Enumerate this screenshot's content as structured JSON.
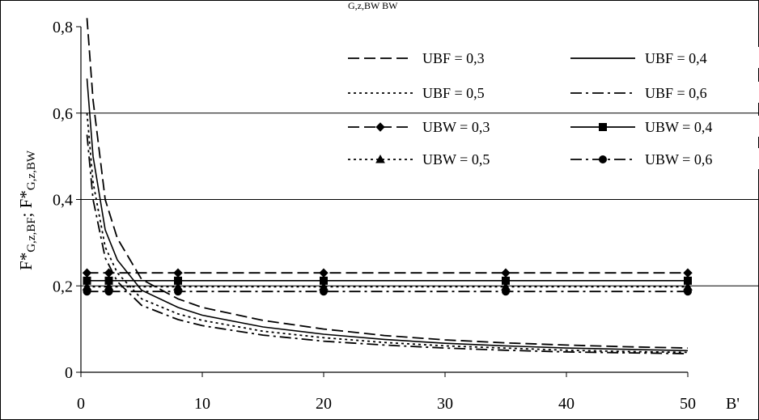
{
  "chart_data": {
    "type": "line",
    "title": "",
    "top_fragment": "G,z,BW      BW",
    "xlabel": "B'",
    "ylabel": "F*G,z,BF; F*G,z,BW",
    "ylabel_parts": {
      "f1": "F*",
      "s1": "G,z,BF",
      "sep": "; ",
      "f2": "F*",
      "s2": "G,z,BW"
    },
    "xlim": [
      0,
      50
    ],
    "ylim": [
      0,
      0.8
    ],
    "xticks": [
      0,
      10,
      20,
      30,
      40,
      50
    ],
    "xtick_labels": [
      "0",
      "10",
      "20",
      "30",
      "40",
      "50"
    ],
    "yticks": [
      0,
      0.2,
      0.4,
      0.6,
      0.8
    ],
    "ytick_labels": [
      "0",
      "0,2",
      "0,4",
      "0,6",
      "0,8"
    ],
    "grid": "horizontal",
    "legend_position": "top-right",
    "series": [
      {
        "name": "UBF = 0,3",
        "style": "long-dash",
        "marker": "none",
        "x": [
          0.5,
          1,
          2,
          3,
          5,
          8,
          10,
          15,
          20,
          25,
          30,
          35,
          40,
          45,
          50
        ],
        "y": [
          0.82,
          0.63,
          0.4,
          0.31,
          0.215,
          0.17,
          0.15,
          0.12,
          0.1,
          0.085,
          0.075,
          0.068,
          0.063,
          0.059,
          0.056
        ]
      },
      {
        "name": "UBF = 0,4",
        "style": "solid",
        "marker": "none",
        "x": [
          0.5,
          1,
          2,
          3,
          5,
          8,
          10,
          15,
          20,
          25,
          30,
          35,
          40,
          45,
          50
        ],
        "y": [
          0.68,
          0.5,
          0.33,
          0.26,
          0.19,
          0.15,
          0.132,
          0.105,
          0.088,
          0.076,
          0.067,
          0.061,
          0.056,
          0.053,
          0.05
        ]
      },
      {
        "name": "UBF = 0,5",
        "style": "dotted",
        "marker": "none",
        "x": [
          0.5,
          1,
          2,
          3,
          5,
          8,
          10,
          15,
          20,
          25,
          30,
          35,
          40,
          45,
          50
        ],
        "y": [
          0.6,
          0.44,
          0.29,
          0.23,
          0.17,
          0.135,
          0.12,
          0.095,
          0.08,
          0.069,
          0.061,
          0.056,
          0.051,
          0.048,
          0.046
        ]
      },
      {
        "name": "UBF = 0,6",
        "style": "dash-dot",
        "marker": "none",
        "x": [
          0.5,
          1,
          2,
          3,
          5,
          8,
          10,
          15,
          20,
          25,
          30,
          35,
          40,
          45,
          50
        ],
        "y": [
          0.55,
          0.4,
          0.265,
          0.21,
          0.155,
          0.122,
          0.108,
          0.086,
          0.072,
          0.063,
          0.056,
          0.051,
          0.047,
          0.045,
          0.043
        ]
      },
      {
        "name": "UBW = 0,3",
        "style": "long-dash",
        "marker": "diamond",
        "x": [
          0.5,
          2.3,
          8,
          20,
          35,
          50
        ],
        "y": [
          0.23,
          0.23,
          0.23,
          0.23,
          0.23,
          0.23
        ]
      },
      {
        "name": "UBW = 0,4",
        "style": "solid",
        "marker": "square",
        "x": [
          0.5,
          2.3,
          8,
          20,
          35,
          50
        ],
        "y": [
          0.212,
          0.212,
          0.212,
          0.212,
          0.212,
          0.212
        ]
      },
      {
        "name": "UBW = 0,5",
        "style": "dotted",
        "marker": "triangle",
        "x": [
          0.5,
          2.3,
          8,
          20,
          35,
          50
        ],
        "y": [
          0.198,
          0.198,
          0.198,
          0.198,
          0.198,
          0.198
        ]
      },
      {
        "name": "UBW = 0,6",
        "style": "dash-dot",
        "marker": "circle",
        "x": [
          0.5,
          2.3,
          8,
          20,
          35,
          50
        ],
        "y": [
          0.187,
          0.187,
          0.187,
          0.187,
          0.187,
          0.187
        ]
      }
    ]
  }
}
